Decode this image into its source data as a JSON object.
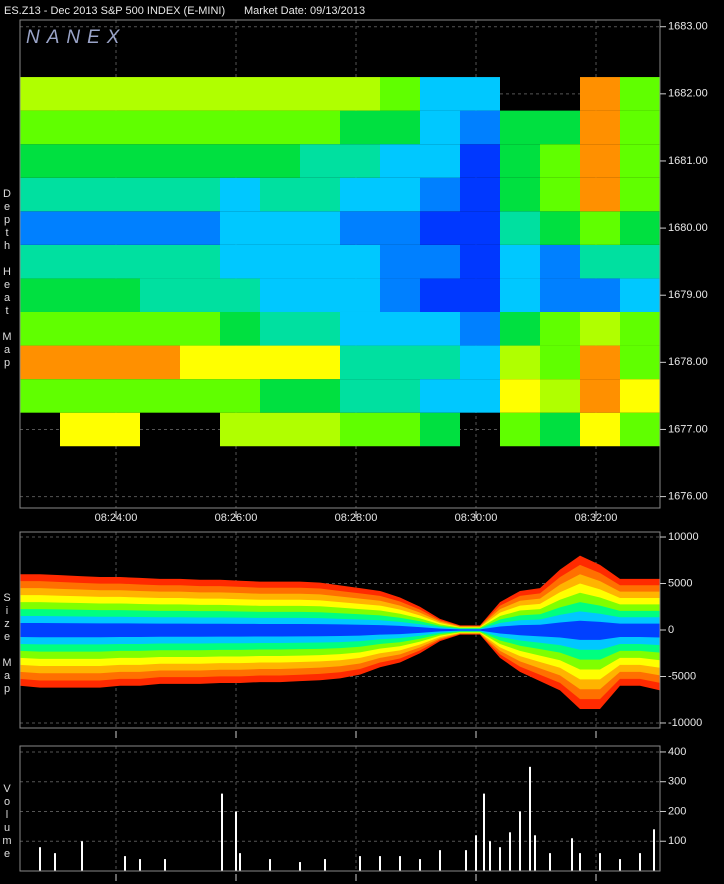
{
  "chart_data": [
    {
      "type": "heatmap",
      "title": "ES.Z13 - Dec 2013 S&P 500 INDEX (E-MINI)",
      "subtitle": "Market Date: 09/13/2013",
      "watermark": "NANEX",
      "ylabel": "Depth Heat Map",
      "xbins": [
        30144,
        30184,
        30224,
        30264,
        30304,
        30344,
        30384,
        30424,
        30464,
        30504,
        30544,
        30584,
        30624,
        30664,
        30704,
        30744,
        30784
      ],
      "ybins": [
        1676.75,
        1677.25,
        1677.75,
        1678.25,
        1678.75,
        1679.25,
        1679.75,
        1680.25,
        1680.75,
        1681.25,
        1681.75,
        1682.25
      ],
      "values": [
        [
          null,
          8,
          8,
          null,
          null,
          7,
          7,
          7,
          6,
          6,
          5,
          null,
          6,
          5,
          8,
          6
        ],
        [
          6,
          6,
          6,
          6,
          6,
          6,
          5,
          5,
          4,
          4,
          3,
          3,
          8,
          7,
          9,
          8
        ],
        [
          9,
          9,
          9,
          9,
          8,
          8,
          8,
          8,
          4,
          4,
          4,
          3,
          7,
          6,
          9,
          6
        ],
        [
          6,
          6,
          6,
          6,
          6,
          5,
          4,
          4,
          3,
          3,
          3,
          2,
          5,
          6,
          7,
          6
        ],
        [
          5,
          5,
          5,
          4,
          4,
          4,
          3,
          3,
          3,
          2,
          1,
          1,
          3,
          2,
          2,
          3
        ],
        [
          4,
          4,
          4,
          4,
          4,
          3,
          3,
          3,
          3,
          2,
          2,
          1,
          3,
          2,
          4,
          4
        ],
        [
          2,
          2,
          2,
          2,
          2,
          3,
          3,
          3,
          2,
          2,
          1,
          1,
          4,
          5,
          6,
          5
        ],
        [
          4,
          4,
          4,
          4,
          4,
          3,
          4,
          4,
          3,
          3,
          2,
          1,
          5,
          6,
          9,
          6
        ],
        [
          5,
          5,
          5,
          5,
          5,
          5,
          5,
          4,
          4,
          3,
          3,
          1,
          5,
          6,
          9,
          6
        ],
        [
          6,
          6,
          6,
          6,
          6,
          6,
          6,
          6,
          5,
          5,
          3,
          2,
          5,
          5,
          9,
          6
        ],
        [
          7,
          7,
          7,
          7,
          7,
          7,
          7,
          7,
          7,
          6,
          3,
          3,
          null,
          null,
          9,
          6
        ]
      ],
      "color_range": [
        0,
        10
      ],
      "colorscale": [
        "#0010e0",
        "#0038ff",
        "#0080ff",
        "#00c8ff",
        "#00e0a0",
        "#00e040",
        "#60ff00",
        "#b0ff00",
        "#ffff00",
        "#ff9000",
        "#ff2000"
      ],
      "xlim": [
        30144,
        30784
      ],
      "xticks": [
        {
          "value": 30240,
          "label": "08:24:00"
        },
        {
          "value": 30360,
          "label": "08:26:00"
        },
        {
          "value": 30480,
          "label": "08:28:00"
        },
        {
          "value": 30600,
          "label": "08:30:00"
        },
        {
          "value": 30720,
          "label": "08:32:00"
        }
      ],
      "show_xtick_labels": true,
      "ylim": [
        1675.83,
        1683.1
      ],
      "yticks": [
        {
          "value": 1683,
          "label": "1683.00"
        },
        {
          "value": 1682,
          "label": "1682.00"
        },
        {
          "value": 1681,
          "label": "1681.00"
        },
        {
          "value": 1680,
          "label": "1680.00"
        },
        {
          "value": 1679,
          "label": "1679.00"
        },
        {
          "value": 1678,
          "label": "1678.00"
        },
        {
          "value": 1677,
          "label": "1677.00"
        },
        {
          "value": 1676,
          "label": "1676.00"
        }
      ],
      "grid": true
    },
    {
      "type": "area",
      "ylabel": "Size Map",
      "x": [
        30144,
        30164,
        30184,
        30204,
        30224,
        30244,
        30264,
        30284,
        30304,
        30324,
        30344,
        30364,
        30384,
        30404,
        30424,
        30444,
        30464,
        30484,
        30504,
        30524,
        30544,
        30564,
        30584,
        30604,
        30624,
        30644,
        30664,
        30684,
        30704,
        30724,
        30744,
        30764,
        30784
      ],
      "series": [
        {
          "color": "#ff2a00",
          "values": [
            6000,
            6000,
            5900,
            5800,
            5700,
            5700,
            5600,
            5500,
            5500,
            5400,
            5400,
            5300,
            5200,
            5200,
            5200,
            5100,
            4800,
            4500,
            4200,
            3500,
            2500,
            1200,
            500,
            500,
            3000,
            4200,
            4500,
            6500,
            8000,
            7000,
            5500,
            5500,
            5500
          ]
        },
        {
          "color": "#ff2a00",
          "values": [
            -6000,
            -6200,
            -6200,
            -6200,
            -6200,
            -6000,
            -6000,
            -5800,
            -5800,
            -5800,
            -5700,
            -5700,
            -5600,
            -5600,
            -5500,
            -5400,
            -5200,
            -4800,
            -4000,
            -3500,
            -2500,
            -1200,
            -500,
            -500,
            -3000,
            -4500,
            -5500,
            -6500,
            -8500,
            -8500,
            -6000,
            -6000,
            -6500
          ]
        }
      ],
      "bands": [
        "#ff2a00",
        "#ff7000",
        "#ffb400",
        "#ffff00",
        "#80ff00",
        "#00ff80",
        "#00c8ff",
        "#0040ff"
      ],
      "xlim": [
        30144,
        30784
      ],
      "xticks": [
        30240,
        30360,
        30480,
        30600,
        30720
      ],
      "show_xtick_labels": false,
      "ylim": [
        -10540,
        10540
      ],
      "yticks": [
        10000,
        5000,
        0,
        -5000,
        -10000
      ],
      "grid": true
    },
    {
      "type": "bar",
      "ylabel": "Volume",
      "x": [
        30164,
        30179,
        30206,
        30249,
        30264,
        30289,
        30346,
        30360,
        30364,
        30394,
        30424,
        30449,
        30484,
        30504,
        30524,
        30544,
        30564,
        30590,
        30600,
        30608,
        30614,
        30624,
        30634,
        30644,
        30654,
        30659,
        30674,
        30696,
        30704,
        30724,
        30744,
        30764,
        30778
      ],
      "values": [
        80,
        60,
        100,
        50,
        40,
        40,
        260,
        200,
        60,
        40,
        30,
        40,
        50,
        50,
        50,
        40,
        70,
        70,
        120,
        260,
        100,
        80,
        130,
        200,
        350,
        120,
        60,
        110,
        60,
        60,
        40,
        60,
        140
      ],
      "color": "#ffffff",
      "xlim": [
        30144,
        30784
      ],
      "xticks": [
        30240,
        30360,
        30480,
        30600,
        30720
      ],
      "show_xtick_labels": false,
      "ylim": [
        0,
        420
      ],
      "yticks": [
        100,
        200,
        300,
        400
      ],
      "grid": true
    }
  ]
}
